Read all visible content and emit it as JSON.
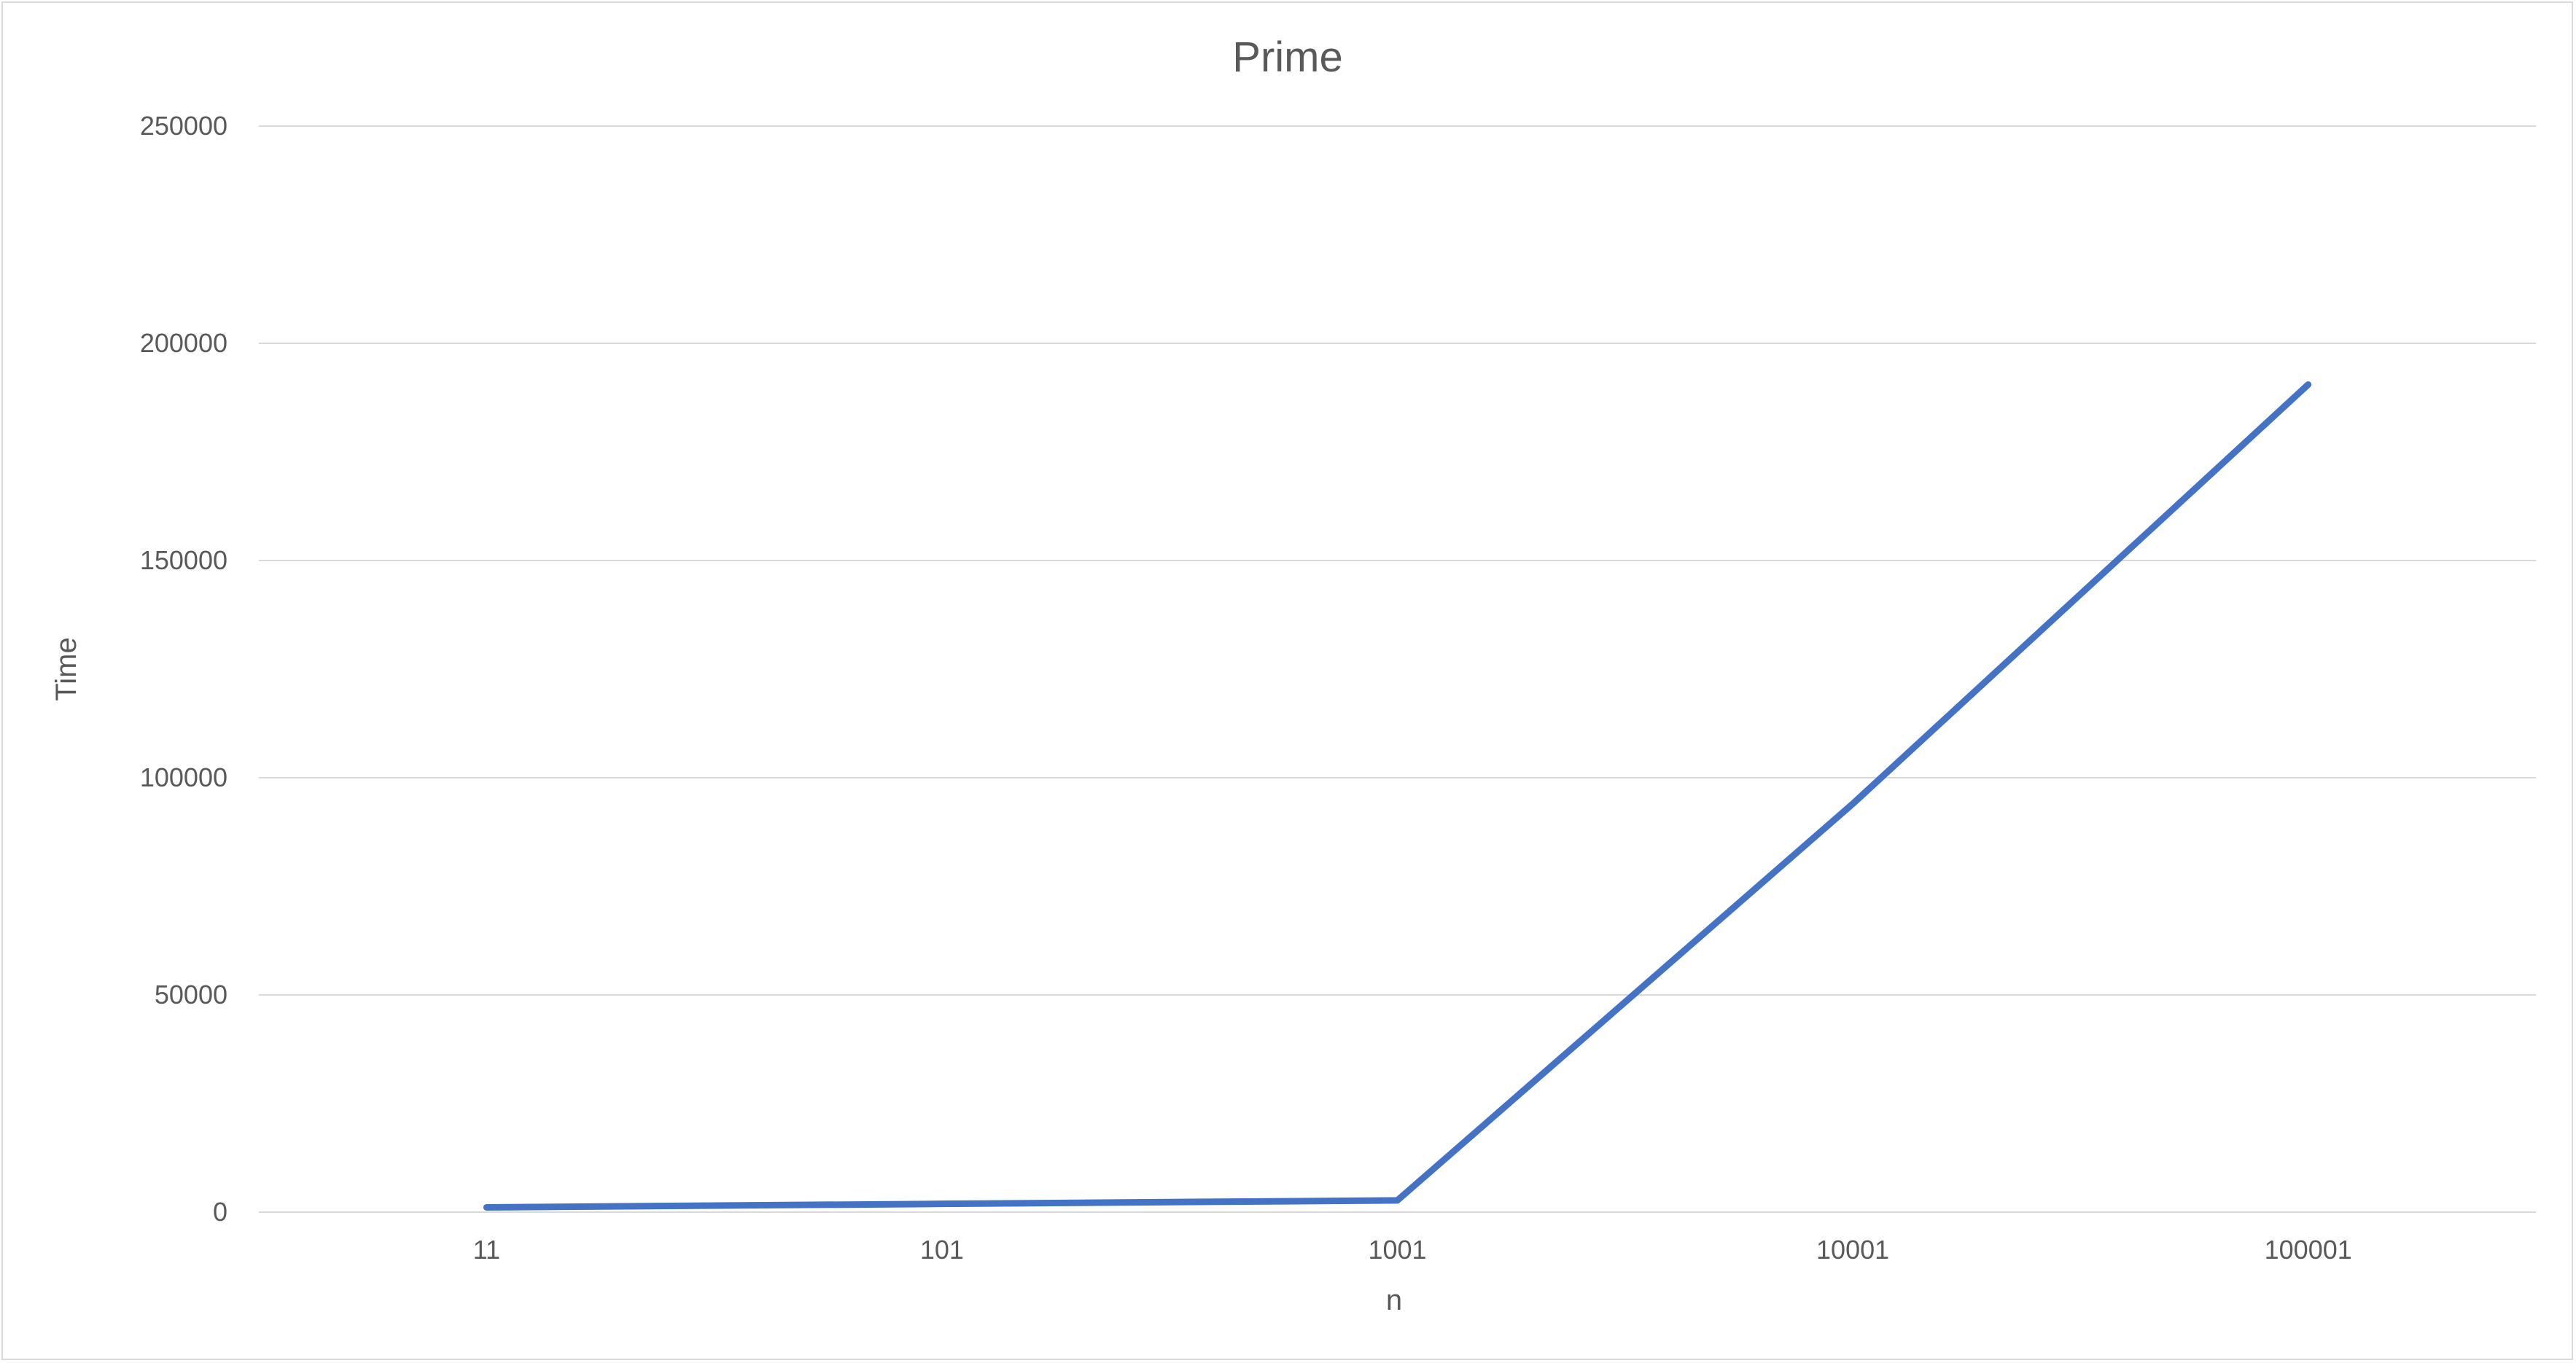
{
  "chart_data": {
    "type": "line",
    "title": "Prime",
    "xlabel": "n",
    "ylabel": "Time",
    "categories": [
      "11",
      "101",
      "1001",
      "10001",
      "100001"
    ],
    "series": [
      {
        "values": [
          1100,
          1900,
          2700,
          94000,
          190500
        ],
        "color": "#4472c4"
      }
    ],
    "ylim": [
      0,
      250000
    ],
    "yticks": [
      0,
      50000,
      100000,
      150000,
      200000,
      250000
    ],
    "ytick_labels": [
      "0",
      "50000",
      "100000",
      "150000",
      "200000",
      "250000"
    ],
    "grid": "horizontal",
    "legend": "none"
  }
}
